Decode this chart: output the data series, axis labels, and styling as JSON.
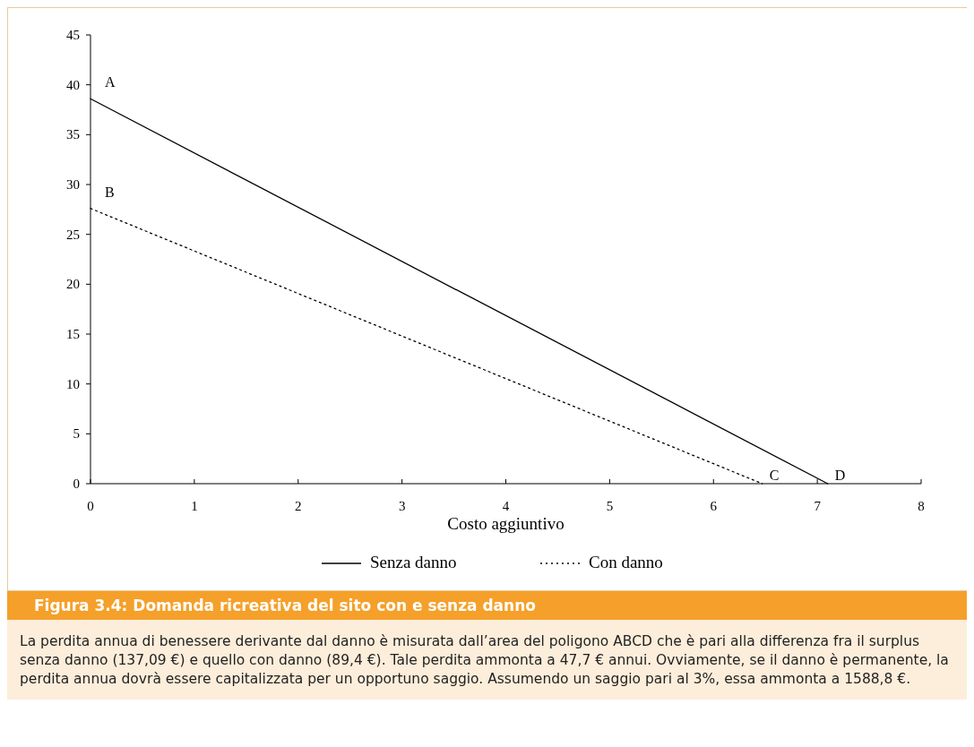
{
  "chart_data": {
    "type": "line",
    "xlabel": "Costo aggiuntivo",
    "xlim": [
      0,
      8
    ],
    "xticks": [
      0,
      1,
      2,
      3,
      4,
      5,
      6,
      7,
      8
    ],
    "ylim": [
      0,
      45
    ],
    "yticks": [
      0,
      5,
      10,
      15,
      20,
      25,
      30,
      35,
      40,
      45
    ],
    "grid": false,
    "legend": "bottom",
    "series": [
      {
        "name": "Senza danno",
        "color": "#000000",
        "line_style": "solid",
        "x": [
          0,
          7.1
        ],
        "values": [
          38.6,
          0
        ]
      },
      {
        "name": "Con danno",
        "color": "#000000",
        "line_style": "dotted",
        "x": [
          0,
          6.47
        ],
        "values": [
          27.6,
          0
        ]
      }
    ],
    "annotations": [
      {
        "text": "A",
        "x": 0,
        "y": 38.6
      },
      {
        "text": "B",
        "x": 0,
        "y": 27.6
      },
      {
        "text": "C",
        "x": 6.47,
        "y": 0
      },
      {
        "text": "D",
        "x": 7.1,
        "y": 0
      },
      "Figura 3.4: Domanda ricreativa del sito con e senza danno",
      "La perdita annua di benessere derivante dal danno è misurata dall’area del poligono ABCD che è pari alla differenza fra il surplus senza danno (137,09 €) e quello con danno (89,4 €). Tale perdita ammonta a 47,7 € annui. Ovviamente, se il danno è permanente, la perdita annua dovrà essere capitalizzata per un opportuno saggio. Assumendo un saggio pari al 3%, essa ammonta a 1588,8 €."
    ]
  }
}
